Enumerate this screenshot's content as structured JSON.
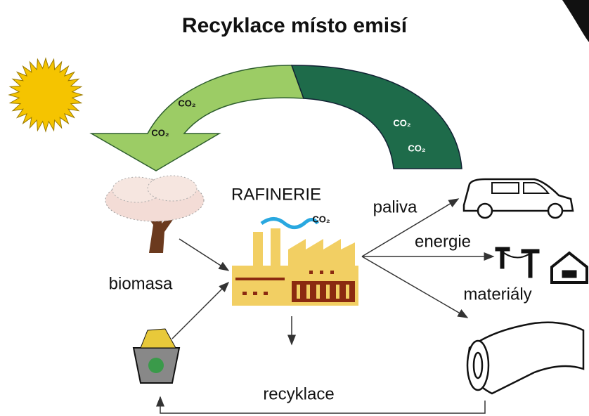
{
  "title": "Recyklace místo emisí",
  "co2_labels": [
    "CO₂",
    "CO₂",
    "CO₂",
    "CO₂",
    "CO₂"
  ],
  "labels": {
    "refinery": "RAFINERIE",
    "biomass": "biomasa",
    "fuels": "paliva",
    "energy": "energie",
    "materials": "materiály",
    "recycling": "recyklace"
  }
}
